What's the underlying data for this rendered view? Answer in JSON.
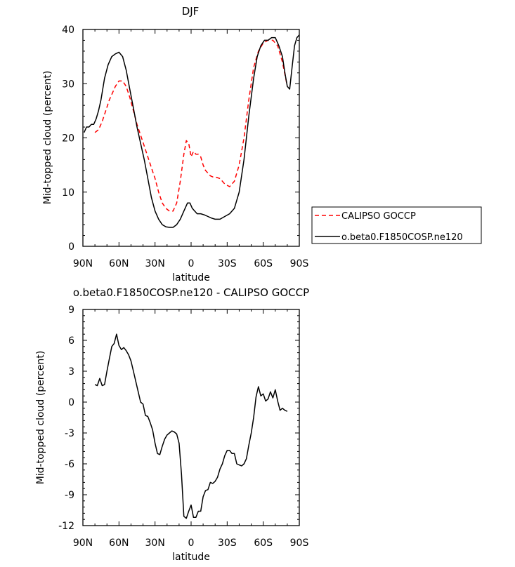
{
  "chart_data": [
    {
      "type": "line",
      "title": "DJF",
      "xlabel": "latitude",
      "ylabel": "Mid-topped cloud (percent)",
      "xlim": [
        -90,
        90
      ],
      "ylim": [
        0,
        40
      ],
      "x_ticks": [
        {
          "value": -90,
          "label": "90N"
        },
        {
          "value": -60,
          "label": "60N"
        },
        {
          "value": -30,
          "label": "30N"
        },
        {
          "value": 0,
          "label": "0"
        },
        {
          "value": 30,
          "label": "30S"
        },
        {
          "value": 60,
          "label": "60S"
        },
        {
          "value": 90,
          "label": "90S"
        }
      ],
      "y_ticks": [
        {
          "value": 0,
          "label": "0"
        },
        {
          "value": 10,
          "label": "10"
        },
        {
          "value": 20,
          "label": "20"
        },
        {
          "value": 30,
          "label": "30"
        },
        {
          "value": 40,
          "label": "40"
        }
      ],
      "grid": false,
      "legend": {
        "placement": "outside-right"
      },
      "series": [
        {
          "name": "CALIPSO GOCCP",
          "color": "#ff0000",
          "dash": "dashed",
          "x": [
            -80,
            -77,
            -74,
            -71,
            -68,
            -65,
            -63,
            -60,
            -57,
            -54,
            -51,
            -48,
            -45,
            -42,
            -39,
            -36,
            -33,
            -30,
            -27,
            -24,
            -21,
            -18,
            -15,
            -12,
            -9,
            -6,
            -4,
            -2,
            0,
            2,
            4,
            6,
            8,
            10,
            12,
            14,
            16,
            18,
            20,
            24,
            28,
            32,
            36,
            40,
            44,
            48,
            52,
            56,
            60,
            64,
            68,
            72,
            76,
            80
          ],
          "y": [
            21,
            21.5,
            23,
            25,
            27,
            28.5,
            29.5,
            30.5,
            30.5,
            29.5,
            27.5,
            25,
            22.5,
            20.5,
            18.5,
            16.5,
            14.5,
            12.5,
            10,
            8,
            7,
            6.5,
            6.5,
            8,
            12,
            17,
            19.5,
            19,
            16.5,
            17.5,
            17,
            17,
            16.5,
            15,
            14,
            13.5,
            13,
            12.8,
            12.8,
            12.5,
            11.5,
            11,
            12,
            15,
            20,
            27,
            33,
            36,
            37.5,
            38,
            38,
            37,
            34,
            29.5
          ]
        },
        {
          "name": "o.beta0.F1850COSP.ne120",
          "color": "#000000",
          "dash": "solid",
          "x": [
            -89,
            -87,
            -85,
            -83,
            -81,
            -79,
            -77,
            -75,
            -72,
            -69,
            -66,
            -63,
            -60,
            -57,
            -54,
            -51,
            -48,
            -45,
            -42,
            -39,
            -36,
            -33,
            -30,
            -27,
            -24,
            -21,
            -18,
            -15,
            -12,
            -9,
            -6,
            -3,
            -1,
            1,
            3,
            5,
            8,
            11,
            14,
            17,
            20,
            24,
            28,
            32,
            36,
            40,
            44,
            48,
            52,
            55,
            58,
            61,
            64,
            67,
            70,
            73,
            76,
            78,
            80,
            82,
            84,
            86,
            88,
            90
          ],
          "y": [
            21,
            22,
            22,
            22.5,
            22.5,
            23.5,
            25,
            27,
            31,
            33.5,
            35,
            35.5,
            35.8,
            35,
            32.5,
            29,
            25.5,
            22,
            19,
            16,
            12.5,
            9,
            6.5,
            5,
            4,
            3.6,
            3.5,
            3.5,
            4,
            5,
            6.5,
            8,
            8,
            7,
            6.5,
            6,
            6,
            5.8,
            5.5,
            5.2,
            5,
            5,
            5.5,
            6,
            7,
            10,
            16,
            24,
            31,
            35,
            37,
            38,
            38,
            38.5,
            38.5,
            37,
            35,
            32,
            29.5,
            29,
            33,
            37,
            38.5,
            39
          ]
        }
      ]
    },
    {
      "type": "line",
      "title": "o.beta0.F1850COSP.ne120 - CALIPSO GOCCP",
      "xlabel": "latitude",
      "ylabel": "Mid-topped cloud (percent)",
      "xlim": [
        -90,
        90
      ],
      "ylim": [
        -12,
        9
      ],
      "x_ticks": [
        {
          "value": -90,
          "label": "90N"
        },
        {
          "value": -60,
          "label": "60N"
        },
        {
          "value": -30,
          "label": "30N"
        },
        {
          "value": 0,
          "label": "0"
        },
        {
          "value": 30,
          "label": "30S"
        },
        {
          "value": 60,
          "label": "60S"
        },
        {
          "value": 90,
          "label": "90S"
        }
      ],
      "y_ticks": [
        {
          "value": -12,
          "label": "-12"
        },
        {
          "value": -9,
          "label": "-9"
        },
        {
          "value": -6,
          "label": "-6"
        },
        {
          "value": -3,
          "label": "-3"
        },
        {
          "value": 0,
          "label": "0"
        },
        {
          "value": 3,
          "label": "3"
        },
        {
          "value": 6,
          "label": "6"
        },
        {
          "value": 9,
          "label": "9"
        }
      ],
      "grid": false,
      "series": [
        {
          "color": "#000000",
          "dash": "solid",
          "x": [
            -80,
            -78,
            -76,
            -74,
            -72,
            -70,
            -68,
            -66,
            -64,
            -62,
            -60,
            -58,
            -56,
            -54,
            -52,
            -50,
            -48,
            -46,
            -44,
            -42,
            -40,
            -38,
            -36,
            -34,
            -32,
            -30,
            -28,
            -26,
            -24,
            -22,
            -20,
            -18,
            -16,
            -14,
            -12,
            -10,
            -8,
            -6,
            -4,
            -2,
            0,
            2,
            4,
            6,
            8,
            10,
            12,
            14,
            16,
            18,
            20,
            22,
            24,
            26,
            28,
            30,
            32,
            34,
            36,
            38,
            40,
            42,
            44,
            46,
            48,
            50,
            52,
            54,
            56,
            58,
            60,
            62,
            64,
            66,
            68,
            70,
            72,
            74,
            76,
            78,
            80
          ],
          "y": [
            1.7,
            1.6,
            2.3,
            1.6,
            1.7,
            3,
            4.2,
            5.4,
            5.7,
            6.6,
            5.5,
            5.1,
            5.3,
            5,
            4.6,
            4,
            3,
            2,
            1,
            0,
            -0.2,
            -1.3,
            -1.4,
            -2,
            -2.7,
            -4,
            -5,
            -5.1,
            -4.3,
            -3.6,
            -3.2,
            -3,
            -2.8,
            -2.9,
            -3.1,
            -4,
            -7,
            -11.1,
            -11.3,
            -10.6,
            -10,
            -11.2,
            -11.2,
            -10.6,
            -10.6,
            -9.2,
            -8.6,
            -8.5,
            -7.8,
            -7.9,
            -7.7,
            -7.3,
            -6.5,
            -6,
            -5.2,
            -4.7,
            -4.7,
            -5,
            -5,
            -6,
            -6.1,
            -6.2,
            -6,
            -5.5,
            -4.2,
            -3,
            -1.5,
            0.5,
            1.5,
            0.6,
            0.8,
            0.1,
            0.3,
            1,
            0.4,
            1.2,
            0.1,
            -0.8,
            -0.6,
            -0.8,
            -0.9
          ]
        }
      ]
    }
  ]
}
